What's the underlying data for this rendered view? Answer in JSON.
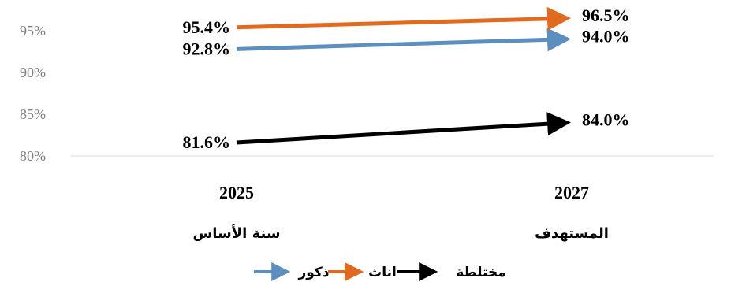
{
  "chart_data": {
    "type": "line",
    "categories": [
      "2025",
      "2027"
    ],
    "category_sublabels": [
      "سنة الأساس",
      "المستهدف"
    ],
    "series": [
      {
        "name": "ذكور",
        "color": "#5B8FC0",
        "values": [
          92.8,
          94.0
        ],
        "labels": [
          "92.8%",
          "94.0%"
        ]
      },
      {
        "name": "اناث",
        "color": "#E26A1E",
        "values": [
          95.4,
          96.5
        ],
        "labels": [
          "95.4%",
          "96.5%"
        ]
      },
      {
        "name": "مختلطة",
        "color": "#000000",
        "values": [
          81.6,
          84.0
        ],
        "labels": [
          "81.6%",
          "84.0%"
        ]
      }
    ],
    "yticks": [
      "80%",
      "85%",
      "90%",
      "95%"
    ],
    "ylim": [
      80,
      97
    ],
    "grid": false,
    "legend_position": "bottom",
    "arrow_lines": true
  }
}
